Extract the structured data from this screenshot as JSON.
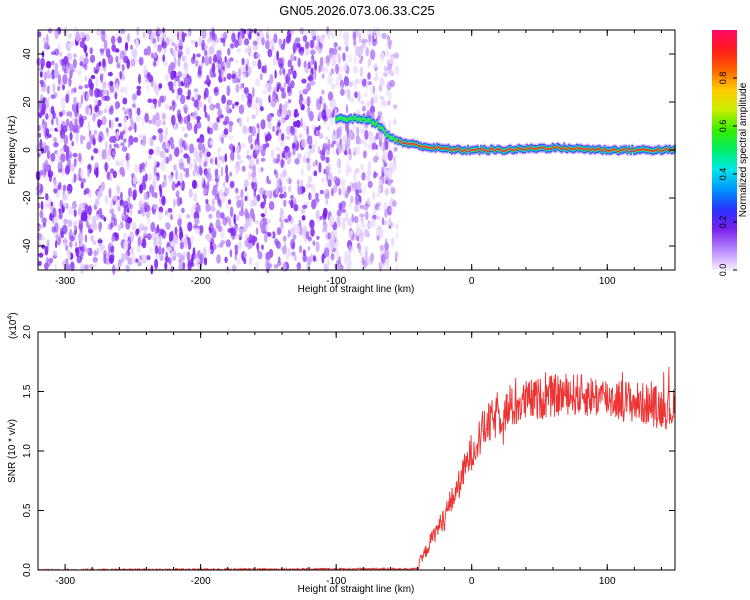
{
  "title": "GN05.2026.073.06.33.C25",
  "chart_data": [
    {
      "type": "heatmap",
      "name": "spectrogram",
      "xlabel": "Height of straight line (km)",
      "ylabel": "Frequency (Hz)",
      "xlim": [
        -320,
        150
      ],
      "ylim": [
        -50,
        50
      ],
      "xticks": [
        -300,
        -200,
        -100,
        0,
        100
      ],
      "yticks": [
        -40,
        -20,
        0,
        20,
        40
      ],
      "colorbar": {
        "label": "Normalized spectral amplitude",
        "range": [
          0.0,
          1.0
        ],
        "ticks": [
          0.0,
          0.2,
          0.4,
          0.6,
          0.8
        ]
      },
      "noise_region_x": [
        -320,
        -55
      ],
      "signal_track": [
        {
          "x": -100,
          "f": 13
        },
        {
          "x": -80,
          "f": 13
        },
        {
          "x": -70,
          "f": 11
        },
        {
          "x": -60,
          "f": 5
        },
        {
          "x": -50,
          "f": 3
        },
        {
          "x": -30,
          "f": 1
        },
        {
          "x": -10,
          "f": 0
        },
        {
          "x": 20,
          "f": 0
        },
        {
          "x": 60,
          "f": 1
        },
        {
          "x": 100,
          "f": 0
        },
        {
          "x": 150,
          "f": 0
        }
      ]
    },
    {
      "type": "line",
      "name": "snr",
      "xlabel": "Height of straight line (km)",
      "ylabel": "SNR (10 * v/v)",
      "scale_label": "(x10",
      "scale_exp": "4",
      "scale_close": ")",
      "xlim": [
        -320,
        150
      ],
      "ylim": [
        0,
        2.0
      ],
      "xticks": [
        -300,
        -200,
        -100,
        0,
        100
      ],
      "yticks": [
        0.0,
        0.5,
        1.0,
        1.5,
        2.0
      ],
      "color": "#ee3333",
      "trend": [
        {
          "x": -320,
          "y": 0.0
        },
        {
          "x": -40,
          "y": 0.01
        },
        {
          "x": -30,
          "y": 0.25
        },
        {
          "x": -20,
          "y": 0.45
        },
        {
          "x": -10,
          "y": 0.7
        },
        {
          "x": 0,
          "y": 1.0
        },
        {
          "x": 10,
          "y": 1.2
        },
        {
          "x": 20,
          "y": 1.3
        },
        {
          "x": 40,
          "y": 1.42
        },
        {
          "x": 70,
          "y": 1.48
        },
        {
          "x": 100,
          "y": 1.45
        },
        {
          "x": 150,
          "y": 1.35
        }
      ]
    }
  ]
}
